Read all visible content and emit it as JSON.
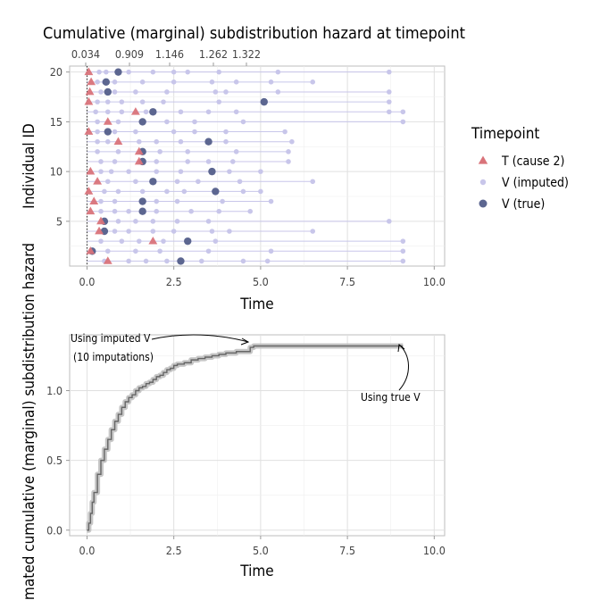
{
  "chart_data": [
    {
      "type": "scatter",
      "title": "Cumulative (marginal) subdistribution hazard at timepoint",
      "top_axis_ticks": [
        "0.034",
        "0.909",
        "1.146",
        "1.262",
        "1.322"
      ],
      "top_axis_values": [
        0.034,
        0.909,
        1.146,
        1.262,
        1.322
      ],
      "xlabel": "Time",
      "ylabel": "Individual ID",
      "xlim": [
        -0.5,
        10.3
      ],
      "ylim": [
        0.5,
        20.6
      ],
      "xticks": [
        0.0,
        2.5,
        5.0,
        7.5,
        10.0
      ],
      "xtick_labels": [
        "0.0",
        "2.5",
        "5.0",
        "7.5",
        "10.0"
      ],
      "yticks": [
        5,
        10,
        15,
        20
      ],
      "ytick_labels": [
        "5",
        "10",
        "15",
        "20"
      ],
      "grid": true,
      "legend_position": "right",
      "legend_title": "Timepoint",
      "legend": [
        {
          "label": "T (cause 2)",
          "color": "#d9737a",
          "marker": "triangle"
        },
        {
          "label": "V (imputed)",
          "color": "#c8c6ea",
          "marker": "circle-small"
        },
        {
          "label": "V (true)",
          "color": "#5c6690",
          "marker": "circle"
        }
      ],
      "individuals": [
        {
          "id": 20,
          "T": 0.05,
          "V_true": 0.9,
          "V_imputed": [
            0.35,
            0.55,
            0.9,
            1.2,
            1.9,
            2.5,
            2.9,
            3.8,
            5.5,
            8.7
          ]
        },
        {
          "id": 19,
          "T": 0.12,
          "V_true": 0.55,
          "V_imputed": [
            0.3,
            0.5,
            0.8,
            1.6,
            2.5,
            3.6,
            4.3,
            5.3,
            6.5
          ]
        },
        {
          "id": 18,
          "T": 0.08,
          "V_true": 0.6,
          "V_imputed": [
            0.4,
            0.8,
            1.4,
            2.3,
            3.7,
            4.0,
            5.5,
            8.7
          ]
        },
        {
          "id": 17,
          "T": 0.05,
          "V_true": 5.1,
          "V_imputed": [
            0.3,
            0.6,
            1.0,
            1.6,
            2.2,
            3.8,
            8.7
          ]
        },
        {
          "id": 16,
          "T": 1.4,
          "V_true": 1.9,
          "V_imputed": [
            0.25,
            0.6,
            1.0,
            1.7,
            2.7,
            3.5,
            4.3,
            8.7,
            9.1
          ]
        },
        {
          "id": 15,
          "T": 0.6,
          "V_true": 1.6,
          "V_imputed": [
            0.3,
            0.9,
            2.3,
            3.1,
            4.5,
            9.1
          ]
        },
        {
          "id": 14,
          "T": 0.05,
          "V_true": 0.6,
          "V_imputed": [
            0.3,
            0.8,
            1.4,
            2.5,
            3.1,
            4.0,
            5.7
          ]
        },
        {
          "id": 13,
          "T": 0.9,
          "V_true": 3.5,
          "V_imputed": [
            0.3,
            0.6,
            1.5,
            2.0,
            2.7,
            4.0,
            5.9
          ]
        },
        {
          "id": 12,
          "T": 1.5,
          "V_true": 1.6,
          "V_imputed": [
            0.3,
            0.9,
            2.1,
            2.9,
            4.3,
            5.8
          ]
        },
        {
          "id": 11,
          "T": 1.5,
          "V_true": 1.6,
          "V_imputed": [
            0.4,
            0.8,
            2.0,
            2.9,
            3.5,
            4.2,
            5.8
          ]
        },
        {
          "id": 10,
          "T": 0.1,
          "V_true": 3.6,
          "V_imputed": [
            0.4,
            0.7,
            1.2,
            2.0,
            2.7,
            4.1,
            5.0
          ]
        },
        {
          "id": 9,
          "T": 0.3,
          "V_true": 1.9,
          "V_imputed": [
            0.6,
            1.4,
            2.6,
            3.2,
            4.4,
            6.5
          ]
        },
        {
          "id": 8,
          "T": 0.05,
          "V_true": 3.7,
          "V_imputed": [
            0.5,
            0.9,
            1.6,
            2.3,
            2.8,
            4.5,
            5.0
          ]
        },
        {
          "id": 7,
          "T": 0.2,
          "V_true": 1.6,
          "V_imputed": [
            0.4,
            0.8,
            2.0,
            2.6,
            3.9,
            5.3
          ]
        },
        {
          "id": 6,
          "T": 0.1,
          "V_true": 1.6,
          "V_imputed": [
            0.4,
            0.8,
            1.2,
            2.0,
            3.0,
            3.8,
            4.7
          ]
        },
        {
          "id": 5,
          "T": 0.4,
          "V_true": 0.5,
          "V_imputed": [
            0.9,
            1.4,
            1.9,
            2.6,
            3.5,
            8.7
          ]
        },
        {
          "id": 4,
          "T": 0.35,
          "V_true": 0.5,
          "V_imputed": [
            0.8,
            1.2,
            1.9,
            2.5,
            3.6,
            4.1,
            6.5
          ]
        },
        {
          "id": 3,
          "T": 1.9,
          "V_true": 2.9,
          "V_imputed": [
            0.4,
            1.0,
            1.5,
            2.2,
            3.7,
            9.1
          ]
        },
        {
          "id": 2,
          "T": 0.1,
          "V_true": 0.15,
          "V_imputed": [
            0.6,
            1.4,
            2.1,
            3.5,
            5.3,
            9.1
          ]
        },
        {
          "id": 1,
          "T": 0.6,
          "V_true": 2.7,
          "V_imputed": [
            0.5,
            1.2,
            1.7,
            2.3,
            3.3,
            4.5,
            5.2,
            9.1
          ]
        }
      ]
    },
    {
      "type": "line",
      "xlabel": "Time",
      "ylabel": "Estimated cumulative (marginal) subdistribution hazard",
      "xlim": [
        -0.5,
        10.3
      ],
      "ylim": [
        -0.04,
        1.4
      ],
      "xticks": [
        0.0,
        2.5,
        5.0,
        7.5,
        10.0
      ],
      "xtick_labels": [
        "0.0",
        "2.5",
        "5.0",
        "7.5",
        "10.0"
      ],
      "yticks": [
        0.0,
        0.5,
        1.0
      ],
      "ytick_labels": [
        "0.0",
        "0.5",
        "1.0"
      ],
      "grid": true,
      "annotations": [
        "Using imputed V",
        "(10 imputations)",
        "Using true V"
      ],
      "series": [
        {
          "color": "#666666",
          "x": [
            0.0,
            0.05,
            0.1,
            0.15,
            0.2,
            0.3,
            0.4,
            0.5,
            0.6,
            0.7,
            0.8,
            0.9,
            1.0,
            1.1,
            1.2,
            1.3,
            1.4,
            1.5,
            1.6,
            1.7,
            1.8,
            1.9,
            2.0,
            2.1,
            2.2,
            2.3,
            2.4,
            2.5,
            2.6,
            2.8,
            3.0,
            3.2,
            3.4,
            3.6,
            3.8,
            4.0,
            4.3,
            4.6,
            4.7,
            4.8,
            5.0,
            6.0,
            7.0,
            8.0,
            9.1
          ],
          "y": [
            0.0,
            0.05,
            0.12,
            0.2,
            0.27,
            0.4,
            0.5,
            0.58,
            0.65,
            0.72,
            0.78,
            0.83,
            0.88,
            0.92,
            0.95,
            0.97,
            1.0,
            1.02,
            1.03,
            1.05,
            1.06,
            1.08,
            1.1,
            1.11,
            1.13,
            1.15,
            1.16,
            1.18,
            1.19,
            1.2,
            1.22,
            1.23,
            1.24,
            1.25,
            1.26,
            1.27,
            1.28,
            1.28,
            1.31,
            1.32,
            1.32,
            1.32,
            1.32,
            1.32,
            1.32
          ]
        }
      ]
    }
  ]
}
